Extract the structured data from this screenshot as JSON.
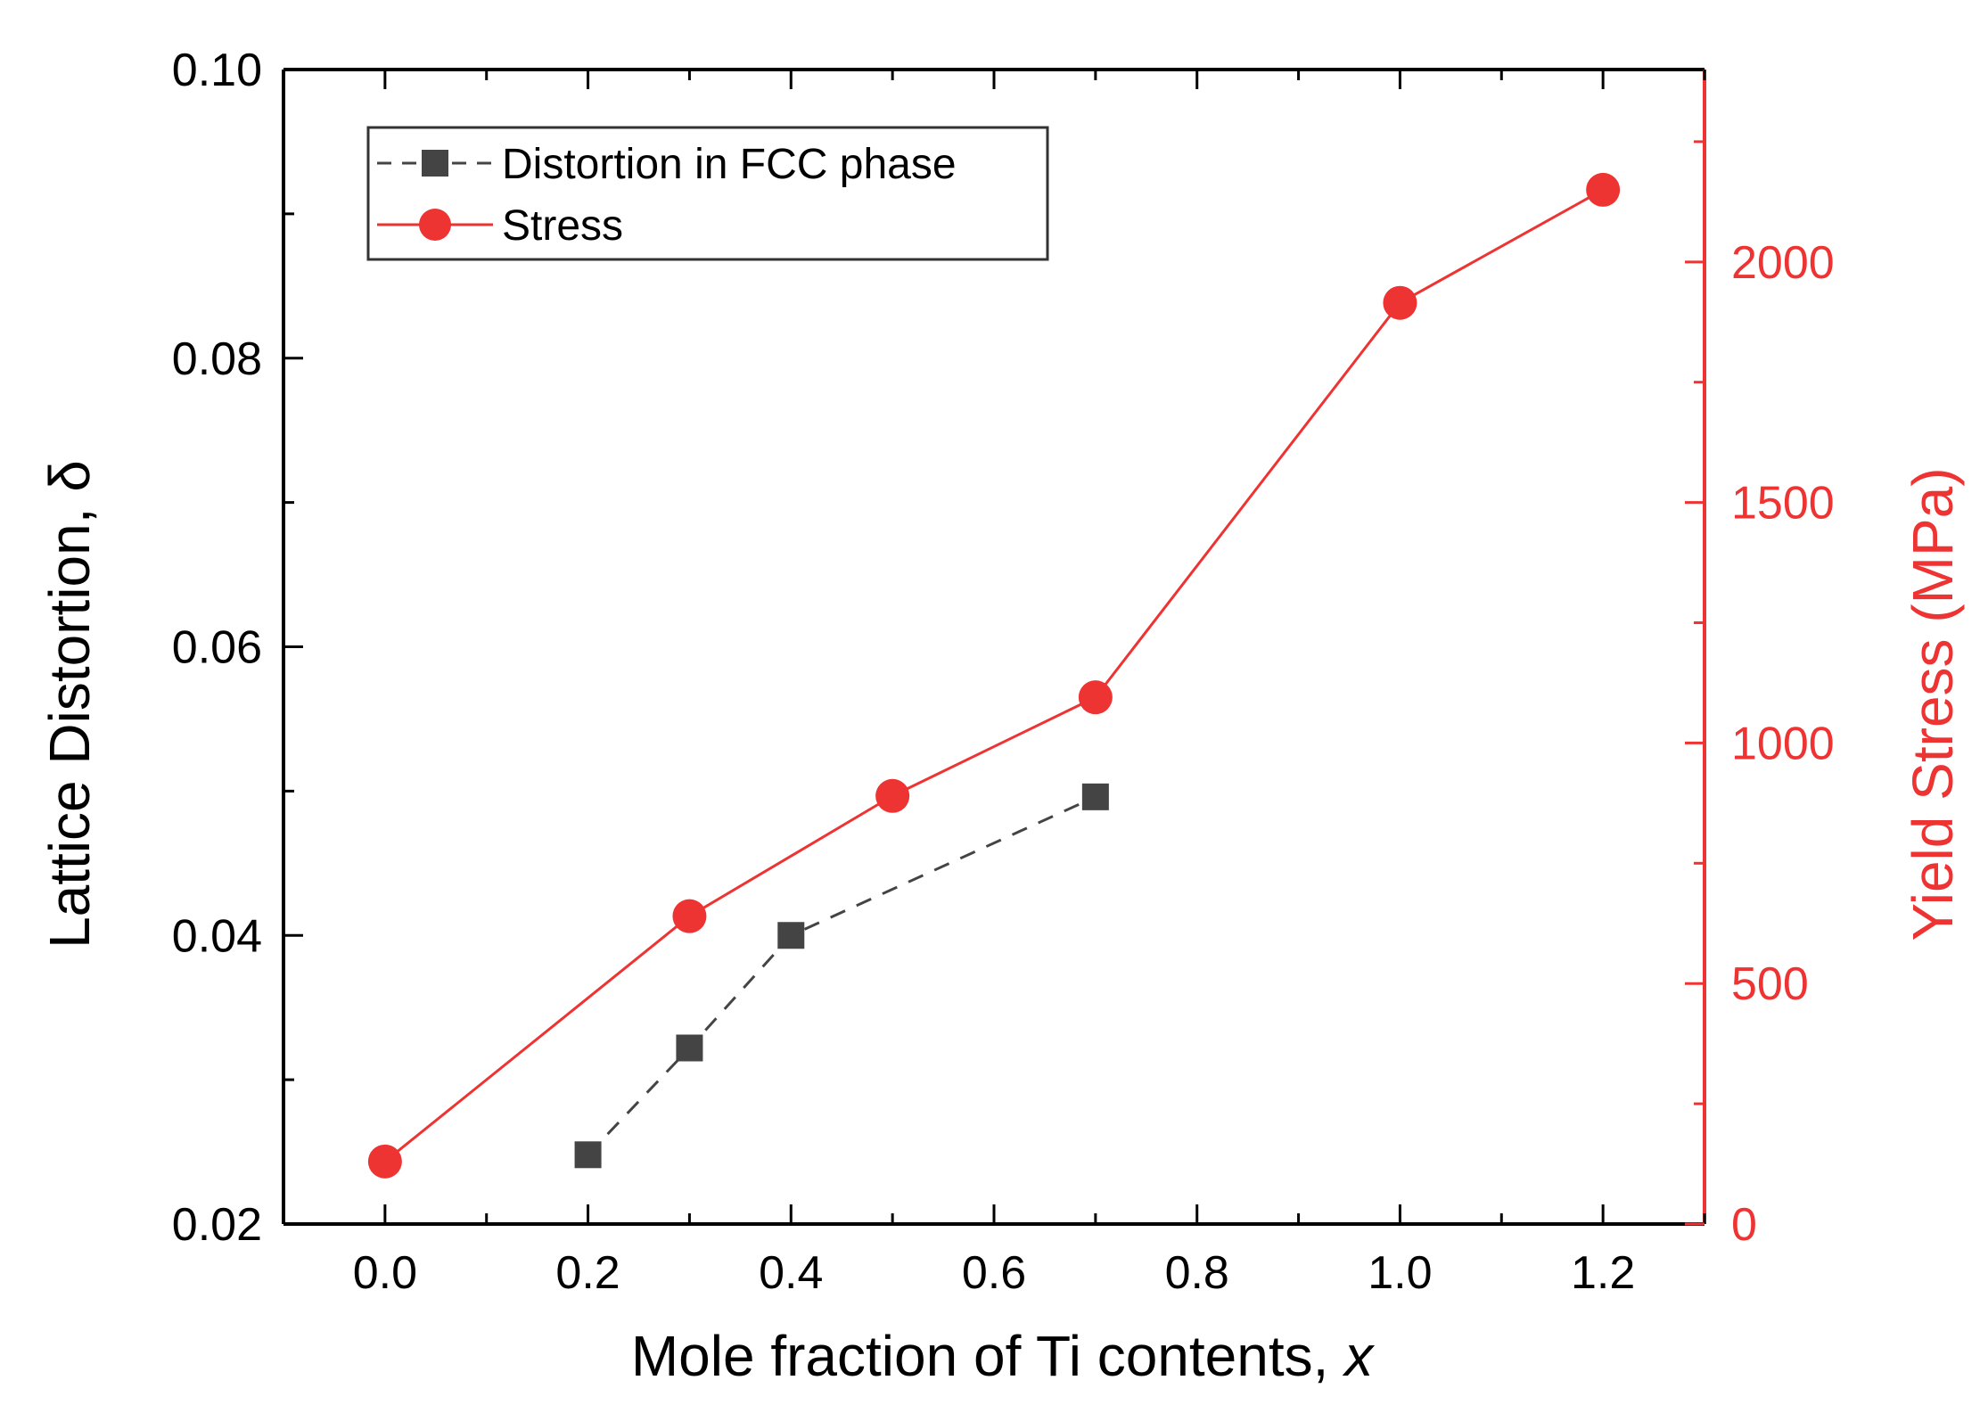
{
  "chart_data": {
    "type": "line",
    "title": "",
    "xlabel": "Mole fraction of Ti contents, ",
    "xlabel_var": "x",
    "ylabel_left": "Lattice Distortion, δ",
    "ylabel_right": "Yield Stress (MPa)",
    "xlim": [
      -0.1,
      1.3
    ],
    "ylim_left": [
      0.02,
      0.1
    ],
    "ylim_right": [
      0,
      2400
    ],
    "x_ticks": [
      0.0,
      0.2,
      0.4,
      0.6,
      0.8,
      1.0,
      1.2
    ],
    "x_tick_labels": [
      "0.0",
      "0.2",
      "0.4",
      "0.6",
      "0.8",
      "1.0",
      "1.2"
    ],
    "y_left_ticks": [
      0.02,
      0.04,
      0.06,
      0.08,
      0.1
    ],
    "y_left_tick_labels": [
      "0.02",
      "0.04",
      "0.06",
      "0.08",
      "0.10"
    ],
    "y_right_ticks": [
      0,
      500,
      1000,
      1500,
      2000
    ],
    "y_right_tick_labels": [
      "0",
      "500",
      "1000",
      "1500",
      "2000"
    ],
    "legend_position": "top-left",
    "series": [
      {
        "name": "Distortion in FCC phase",
        "axis": "left",
        "marker": "square",
        "line_style": "dashed",
        "color": "#444444",
        "x": [
          0.2,
          0.3,
          0.4,
          0.7
        ],
        "y": [
          0.0248,
          0.0322,
          0.04,
          0.0496
        ]
      },
      {
        "name": "Stress",
        "axis": "right",
        "marker": "circle",
        "line_style": "solid",
        "color": "#ee3333",
        "x": [
          0.0,
          0.3,
          0.5,
          0.7,
          1.0,
          1.2
        ],
        "y": [
          130,
          640,
          890,
          1095,
          1915,
          2150
        ]
      }
    ],
    "colors": {
      "left_axis": "#000000",
      "right_axis": "#ee3333"
    }
  }
}
